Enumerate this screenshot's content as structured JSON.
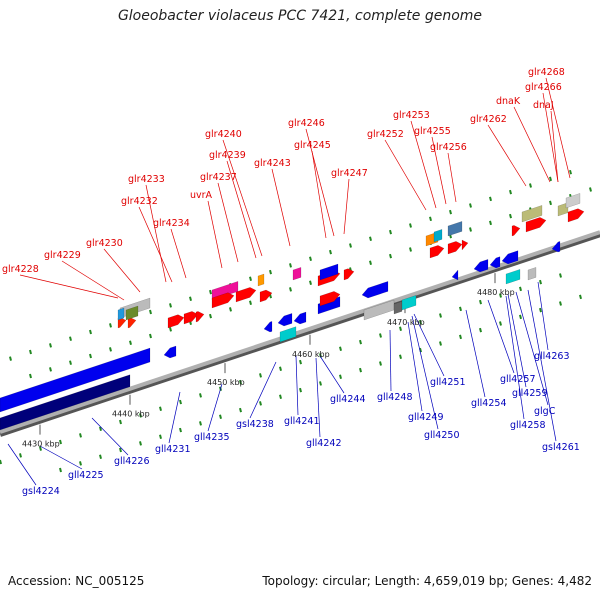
{
  "title": "Gloeobacter violaceus PCC 7421, complete genome",
  "accession": "Accession: NC_005125",
  "summary": "Topology: circular; Length: 4,659,019 bp; Genes: 4,482",
  "colors": {
    "backbone": "#8a8a8a",
    "forward_label": "#e00000",
    "reverse_label": "#0000bb",
    "forward_gene": "#ff0000",
    "reverse_gene": "#0000ff",
    "tick": "#228822"
  },
  "ticks": [
    {
      "label": "4430 kbp"
    },
    {
      "label": "4440 kbp"
    },
    {
      "label": "4450 kbp"
    },
    {
      "label": "4460 kbp"
    },
    {
      "label": "4470 kbp"
    },
    {
      "label": "4480 kbp"
    }
  ],
  "forward_genes": [
    "glr4228",
    "glr4229",
    "glr4230",
    "glr4232",
    "glr4233",
    "glr4234",
    "uvrA",
    "glr4237",
    "glr4239",
    "glr4240",
    "glr4243",
    "glr4245",
    "glr4246",
    "glr4247",
    "glr4252",
    "glr4253",
    "glr4255",
    "glr4256",
    "glr4262",
    "dnaK",
    "glr4266",
    "dnaJ",
    "glr4268"
  ],
  "reverse_genes": [
    "gsl4224",
    "gll4225",
    "gll4226",
    "gll4231",
    "gll4235",
    "gsl4238",
    "gll4241",
    "gll4242",
    "gll4244",
    "gll4248",
    "gll4249",
    "gll4250",
    "gll4251",
    "gll4254",
    "gll4257",
    "gll4258",
    "gll4259",
    "glgC",
    "gsl4261",
    "gll4263"
  ]
}
